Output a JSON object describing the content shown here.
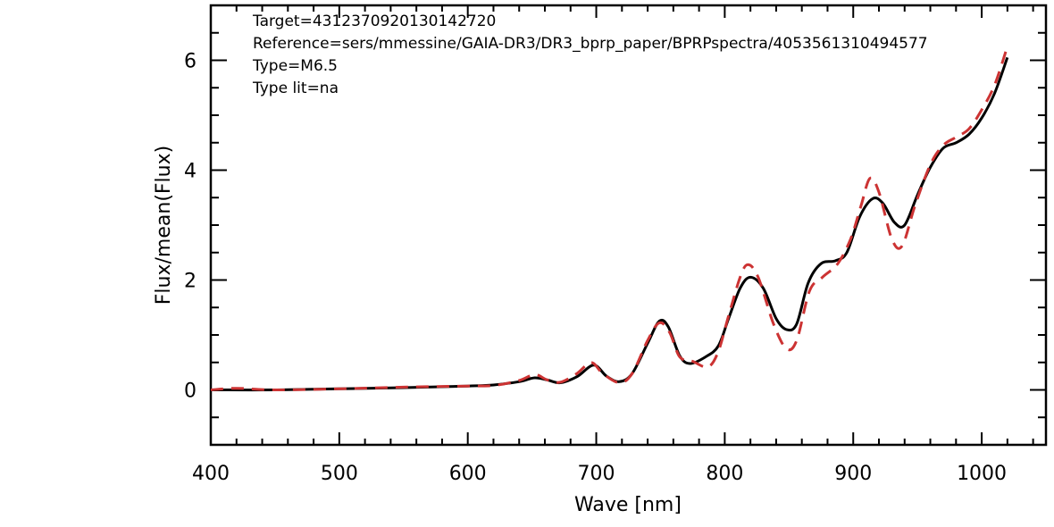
{
  "chart_data": {
    "type": "line",
    "xlabel": "Wave [nm]",
    "ylabel": "Flux/mean(Flux)",
    "xlim": [
      400,
      1050
    ],
    "ylim": [
      -1,
      7
    ],
    "x_ticks": [
      400,
      500,
      600,
      700,
      800,
      900,
      1000
    ],
    "x_tick_labels": [
      "400",
      "500",
      "600",
      "700",
      "800",
      "900",
      "1000"
    ],
    "y_ticks": [
      0,
      2,
      4,
      6
    ],
    "y_tick_labels": [
      "0",
      "2",
      "4",
      "6"
    ],
    "grid": false,
    "colors": {
      "target": "#000000",
      "reference": "#cc3333"
    },
    "annotations": [
      "Target=4312370920130142720",
      "Reference=sers/mmessine/GAIA-DR3/DR3_bprp_paper/BPRPspectra/4053561310494577",
      "Type=M6.5",
      "Type lit=na"
    ],
    "series": [
      {
        "style": "solid",
        "points": [
          [
            400,
            0.0
          ],
          [
            450,
            0.0
          ],
          [
            500,
            0.02
          ],
          [
            550,
            0.04
          ],
          [
            600,
            0.07
          ],
          [
            620,
            0.09
          ],
          [
            640,
            0.15
          ],
          [
            652,
            0.22
          ],
          [
            662,
            0.18
          ],
          [
            672,
            0.13
          ],
          [
            685,
            0.24
          ],
          [
            698,
            0.45
          ],
          [
            708,
            0.25
          ],
          [
            718,
            0.15
          ],
          [
            728,
            0.3
          ],
          [
            740,
            0.85
          ],
          [
            749,
            1.25
          ],
          [
            756,
            1.15
          ],
          [
            765,
            0.62
          ],
          [
            773,
            0.48
          ],
          [
            785,
            0.6
          ],
          [
            795,
            0.8
          ],
          [
            803,
            1.3
          ],
          [
            812,
            1.85
          ],
          [
            820,
            2.05
          ],
          [
            830,
            1.85
          ],
          [
            840,
            1.3
          ],
          [
            848,
            1.1
          ],
          [
            856,
            1.2
          ],
          [
            865,
            1.95
          ],
          [
            875,
            2.3
          ],
          [
            886,
            2.35
          ],
          [
            895,
            2.5
          ],
          [
            905,
            3.15
          ],
          [
            915,
            3.48
          ],
          [
            923,
            3.4
          ],
          [
            932,
            3.05
          ],
          [
            940,
            3.0
          ],
          [
            950,
            3.55
          ],
          [
            960,
            4.05
          ],
          [
            970,
            4.4
          ],
          [
            980,
            4.5
          ],
          [
            990,
            4.65
          ],
          [
            1000,
            4.95
          ],
          [
            1010,
            5.4
          ],
          [
            1020,
            6.05
          ]
        ]
      },
      {
        "style": "dashed",
        "points": [
          [
            400,
            0.0
          ],
          [
            420,
            0.03
          ],
          [
            450,
            0.0
          ],
          [
            500,
            0.02
          ],
          [
            550,
            0.05
          ],
          [
            600,
            0.07
          ],
          [
            620,
            0.08
          ],
          [
            640,
            0.17
          ],
          [
            652,
            0.28
          ],
          [
            662,
            0.18
          ],
          [
            672,
            0.14
          ],
          [
            685,
            0.3
          ],
          [
            696,
            0.5
          ],
          [
            705,
            0.3
          ],
          [
            718,
            0.13
          ],
          [
            728,
            0.3
          ],
          [
            740,
            0.9
          ],
          [
            749,
            1.22
          ],
          [
            757,
            1.05
          ],
          [
            765,
            0.6
          ],
          [
            775,
            0.52
          ],
          [
            787,
            0.42
          ],
          [
            795,
            0.7
          ],
          [
            803,
            1.35
          ],
          [
            812,
            2.05
          ],
          [
            818,
            2.28
          ],
          [
            826,
            2.05
          ],
          [
            838,
            1.2
          ],
          [
            848,
            0.75
          ],
          [
            856,
            0.9
          ],
          [
            866,
            1.8
          ],
          [
            876,
            2.05
          ],
          [
            888,
            2.3
          ],
          [
            898,
            2.75
          ],
          [
            906,
            3.35
          ],
          [
            913,
            3.85
          ],
          [
            920,
            3.6
          ],
          [
            930,
            2.75
          ],
          [
            938,
            2.62
          ],
          [
            948,
            3.35
          ],
          [
            960,
            4.1
          ],
          [
            970,
            4.45
          ],
          [
            980,
            4.6
          ],
          [
            990,
            4.75
          ],
          [
            1000,
            5.1
          ],
          [
            1010,
            5.55
          ],
          [
            1020,
            6.25
          ]
        ]
      }
    ]
  }
}
